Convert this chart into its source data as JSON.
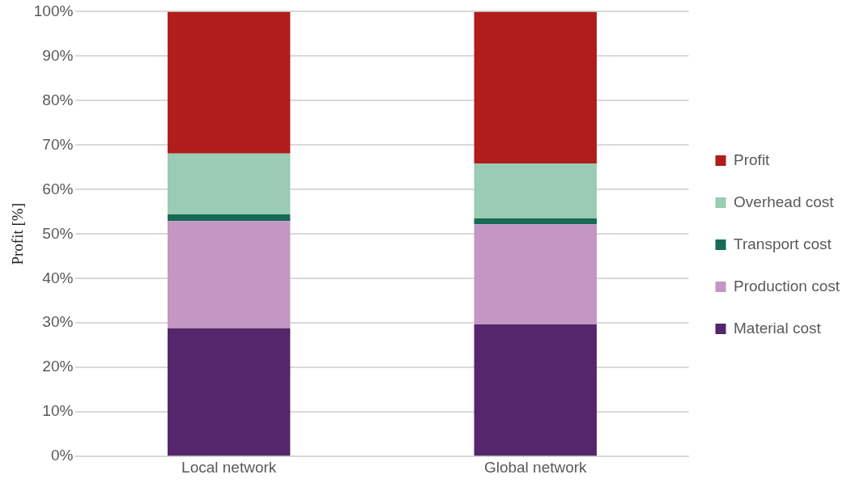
{
  "chart_data": {
    "type": "bar",
    "stacked": true,
    "ylabel": "Profit [%]",
    "categories": [
      "Local network",
      "Global network"
    ],
    "series": [
      {
        "name": "Material cost",
        "color": "#55266b",
        "values": [
          28.8,
          29.7
        ]
      },
      {
        "name": "Production cost",
        "color": "#c396c4",
        "values": [
          24.1,
          22.5
        ]
      },
      {
        "name": "Transport cost",
        "color": "#176a56",
        "values": [
          1.5,
          1.3
        ]
      },
      {
        "name": "Overhead cost",
        "color": "#9acbb4",
        "values": [
          13.7,
          12.4
        ]
      },
      {
        "name": "Profit",
        "color": "#b11d1a",
        "values": [
          31.9,
          34.1
        ]
      }
    ],
    "ylim": [
      0,
      100
    ],
    "yticks": [
      {
        "value": 0,
        "label": "0%"
      },
      {
        "value": 10,
        "label": "10%"
      },
      {
        "value": 20,
        "label": "20%"
      },
      {
        "value": 30,
        "label": "30%"
      },
      {
        "value": 40,
        "label": "40%"
      },
      {
        "value": 50,
        "label": "50%"
      },
      {
        "value": 60,
        "label": "60%"
      },
      {
        "value": 70,
        "label": "70%"
      },
      {
        "value": 80,
        "label": "80%"
      },
      {
        "value": 90,
        "label": "90%"
      },
      {
        "value": 100,
        "label": "100%"
      }
    ],
    "grid": "y",
    "legend": "right"
  }
}
